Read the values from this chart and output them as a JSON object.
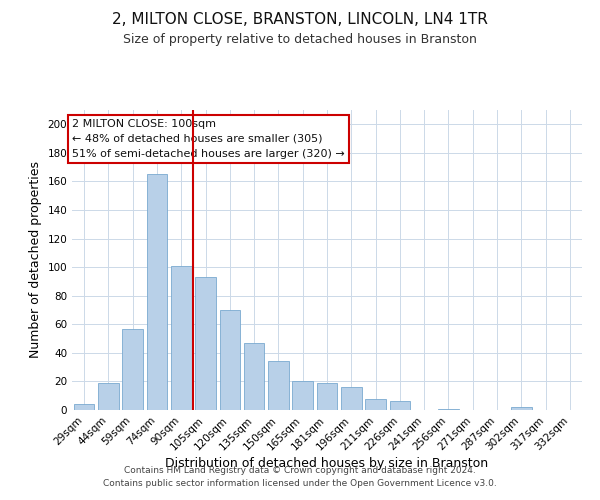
{
  "title": "2, MILTON CLOSE, BRANSTON, LINCOLN, LN4 1TR",
  "subtitle": "Size of property relative to detached houses in Branston",
  "xlabel": "Distribution of detached houses by size in Branston",
  "ylabel": "Number of detached properties",
  "bar_labels": [
    "29sqm",
    "44sqm",
    "59sqm",
    "74sqm",
    "90sqm",
    "105sqm",
    "120sqm",
    "135sqm",
    "150sqm",
    "165sqm",
    "181sqm",
    "196sqm",
    "211sqm",
    "226sqm",
    "241sqm",
    "256sqm",
    "271sqm",
    "287sqm",
    "302sqm",
    "317sqm",
    "332sqm"
  ],
  "bar_values": [
    4,
    19,
    57,
    165,
    101,
    93,
    70,
    47,
    34,
    20,
    19,
    16,
    8,
    6,
    0,
    1,
    0,
    0,
    2,
    0,
    0
  ],
  "bar_color": "#b8d0e8",
  "bar_edge_color": "#7aaad0",
  "vline_color": "#cc0000",
  "ylim": [
    0,
    210
  ],
  "yticks": [
    0,
    20,
    40,
    60,
    80,
    100,
    120,
    140,
    160,
    180,
    200
  ],
  "annotation_title": "2 MILTON CLOSE: 100sqm",
  "annotation_line1": "← 48% of detached houses are smaller (305)",
  "annotation_line2": "51% of semi-detached houses are larger (320) →",
  "annotation_box_color": "#ffffff",
  "annotation_box_edge": "#cc0000",
  "footer_line1": "Contains HM Land Registry data © Crown copyright and database right 2024.",
  "footer_line2": "Contains public sector information licensed under the Open Government Licence v3.0.",
  "title_fontsize": 11,
  "subtitle_fontsize": 9,
  "axis_label_fontsize": 9,
  "tick_fontsize": 7.5,
  "footer_fontsize": 6.5,
  "annotation_fontsize": 8
}
